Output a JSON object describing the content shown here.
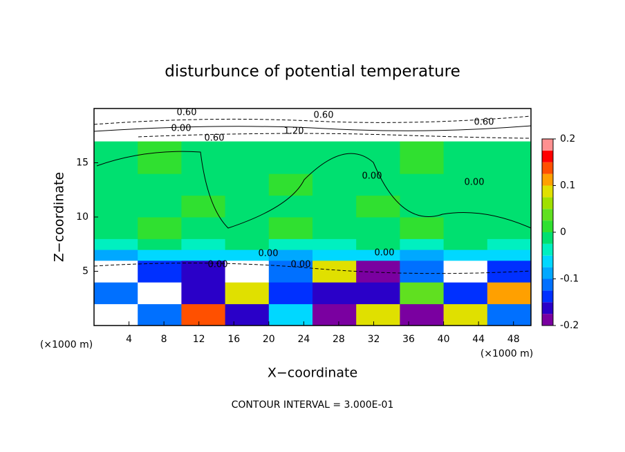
{
  "chart_data": {
    "type": "contour",
    "title": "disturbunce of potential temperature",
    "x_label": "X−coordinate",
    "y_label": "Z−coordinate",
    "x_unit": "(×1000 m)",
    "y_unit": "(×1000 m)",
    "footer": "CONTOUR INTERVAL = 3.000E-01",
    "xlim": [
      0,
      50
    ],
    "ylim": [
      0,
      20
    ],
    "xticks": [
      4,
      8,
      12,
      16,
      20,
      24,
      28,
      32,
      36,
      40,
      44,
      48
    ],
    "yticks": [
      5,
      10,
      15
    ],
    "x_edges": [
      0,
      5,
      10,
      15,
      20,
      25,
      30,
      35,
      40,
      45,
      50
    ],
    "y_edges": [
      0,
      2,
      4,
      6,
      7,
      8,
      10,
      12,
      14,
      17,
      20
    ],
    "z": [
      [
        0.3,
        -0.12,
        0.15,
        -0.15,
        -0.05,
        -0.18,
        0.08,
        -0.2,
        0.1,
        -0.12
      ],
      [
        -0.1,
        0.3,
        -0.15,
        0.1,
        -0.13,
        -0.15,
        -0.17,
        0.05,
        -0.14,
        0.12
      ],
      [
        0.25,
        -0.14,
        -0.16,
        0.3,
        -0.12,
        0.08,
        -0.18,
        -0.1,
        0.3,
        -0.13
      ],
      [
        -0.08,
        -0.06,
        -0.07,
        -0.07,
        -0.08,
        -0.07,
        -0.07,
        -0.08,
        -0.07,
        -0.07
      ],
      [
        -0.03,
        -0.02,
        -0.03,
        -0.02,
        -0.03,
        -0.03,
        -0.02,
        -0.03,
        -0.02,
        -0.03
      ],
      [
        0.0,
        0.01,
        0.0,
        0.0,
        0.01,
        0.0,
        0.0,
        0.01,
        0.0,
        0.0
      ],
      [
        0.0,
        0.0,
        0.01,
        0.0,
        0.0,
        0.0,
        0.01,
        0.0,
        0.0,
        0.0
      ],
      [
        0.0,
        0.0,
        0.0,
        0.0,
        0.01,
        0.0,
        0.0,
        0.0,
        0.0,
        0.0
      ],
      [
        0.0,
        0.01,
        0.0,
        0.0,
        0.0,
        0.0,
        0.0,
        0.01,
        0.0,
        0.0
      ],
      [
        0.6,
        0.6,
        0.9,
        0.6,
        1.2,
        1.2,
        0.6,
        0.6,
        0.6,
        0.6
      ]
    ],
    "colorbar_levels": [
      -0.2,
      -0.175,
      -0.15,
      -0.125,
      -0.1,
      -0.075,
      -0.05,
      -0.025,
      0,
      0.025,
      0.05,
      0.075,
      0.1,
      0.125,
      0.15,
      0.175,
      0.2
    ],
    "colorbar_ticks": [
      -0.2,
      -0.1,
      0,
      0.1,
      0.2
    ],
    "colors": [
      "#7a00a0",
      "#2a00c8",
      "#0030ff",
      "#0070ff",
      "#00a8ff",
      "#00d8ff",
      "#00f0c0",
      "#00e070",
      "#30e030",
      "#60e020",
      "#a0e000",
      "#e0e000",
      "#ffa000",
      "#ff5000",
      "#ff0000",
      "#ff9090"
    ],
    "out_of_range_color": "#ffffff",
    "contour_labels": [
      "0.60",
      "0.00",
      "0.60",
      "0.60",
      "1.20",
      "0.60",
      "0.00",
      "0.00",
      "0.00",
      "0.00",
      "0.00",
      "0.00"
    ]
  }
}
